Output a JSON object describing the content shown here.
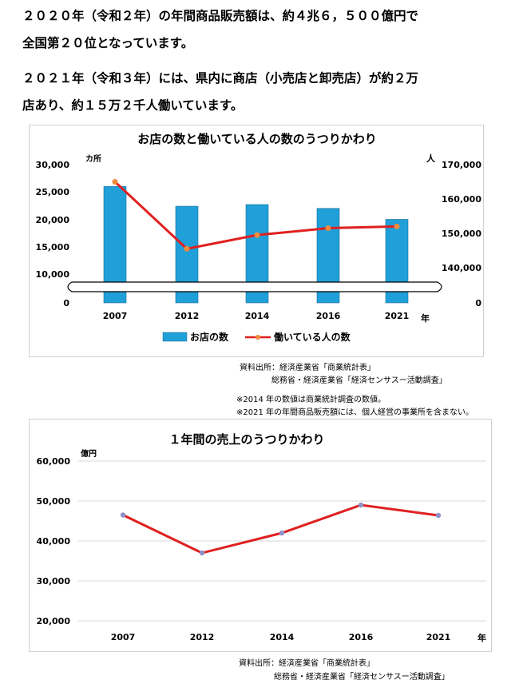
{
  "intro": {
    "line1": "２０２０年（令和２年）の年間商品販売額は、約４兆６，５００億円で",
    "line2": "全国第２０位となっています。",
    "line3": "２０２１年（令和３年）には、県内に商店（小売店と卸売店）が約２万",
    "line4": "店あり、約１５万２千人働いています。"
  },
  "chart1_sources": {
    "line1": "資料出所：経済産業省「商業統計表」",
    "line2": "総務省・経済産業省「経済センサスー活動調査」",
    "note1": "※2014 年の数値は商業統計調査の数値。",
    "note2": "※2021 年の年間商品販売額には、個人経営の事業所を含まない。"
  },
  "chart2_sources": {
    "line1": "資料出所：経済産業省「商業統計表」",
    "line2": "総務省・経済産業省「経済センサスー活動調査」"
  },
  "chart_data": [
    {
      "type": "bar",
      "title": "お店の数と働いている人の数のうつりかわり",
      "categories": [
        "2007",
        "2012",
        "2014",
        "2016",
        "2021"
      ],
      "x_unit": "年",
      "series": [
        {
          "name": "お店の数",
          "type": "bar",
          "axis": "left",
          "color": "#1fa0d8",
          "values": [
            26000,
            22400,
            22700,
            22000,
            20000
          ]
        },
        {
          "name": "働いている人の数",
          "type": "line",
          "axis": "right",
          "color": "#e02020",
          "marker_color": "#f08a3c",
          "values": [
            165000,
            145500,
            149500,
            151500,
            152000
          ]
        }
      ],
      "y_left": {
        "unit": "カ所",
        "ticks": [
          "30,000",
          "25,000",
          "20,000",
          "15,000",
          "10,000",
          "0"
        ],
        "range": [
          10000,
          30000
        ],
        "broken": true
      },
      "y_right": {
        "unit": "人",
        "ticks": [
          "170,000",
          "160,000",
          "150,000",
          "140,000",
          "0"
        ],
        "range": [
          140000,
          170000
        ],
        "broken": true
      },
      "grid": false,
      "legend_position": "bottom"
    },
    {
      "type": "line",
      "title": "１年間の売上のうつりかわり",
      "categories": [
        "2007",
        "2012",
        "2014",
        "2016",
        "2021"
      ],
      "x_unit": "年",
      "series": [
        {
          "name": "",
          "color": "#e02020",
          "marker_color": "#9090c8",
          "values": [
            46500,
            37000,
            42000,
            49000,
            46400
          ]
        }
      ],
      "y_unit": "億円",
      "ylim": [
        20000,
        60000
      ],
      "y_ticks": [
        "60,000",
        "50,000",
        "40,000",
        "30,000",
        "20,000"
      ],
      "grid": true
    }
  ]
}
